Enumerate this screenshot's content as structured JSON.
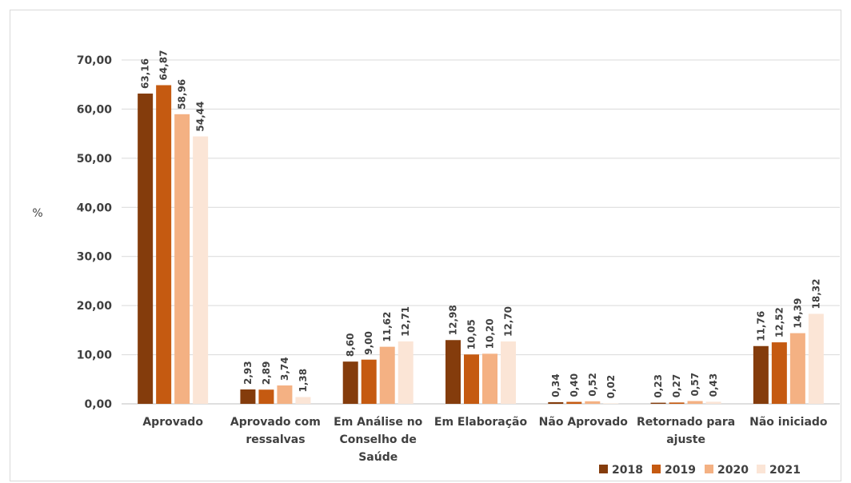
{
  "chart_data": {
    "type": "bar",
    "ylabel": "%",
    "ylim": [
      0,
      70
    ],
    "yticks": [
      "0,00",
      "10,00",
      "20,00",
      "30,00",
      "40,00",
      "50,00",
      "60,00",
      "70,00"
    ],
    "grid": true,
    "legend_position": "bottom-right",
    "categories": [
      [
        "Aprovado"
      ],
      [
        "Aprovado com",
        "ressalvas"
      ],
      [
        "Em Análise no",
        "Conselho de",
        "Saúde"
      ],
      [
        "Em Elaboração"
      ],
      [
        "Não Aprovado"
      ],
      [
        "Retornado para",
        "ajuste"
      ],
      [
        "Não iniciado"
      ]
    ],
    "series": [
      {
        "name": "2018",
        "color": "#843c0c",
        "values": [
          63.16,
          2.93,
          8.6,
          12.98,
          0.34,
          0.23,
          11.76
        ],
        "labels": [
          "63,16",
          "2,93",
          "8,60",
          "12,98",
          "0,34",
          "0,23",
          "11,76"
        ]
      },
      {
        "name": "2019",
        "color": "#c55a11",
        "values": [
          64.87,
          2.89,
          9.0,
          10.05,
          0.4,
          0.27,
          12.52
        ],
        "labels": [
          "64,87",
          "2,89",
          "9,00",
          "10,05",
          "0,40",
          "0,27",
          "12,52"
        ]
      },
      {
        "name": "2020",
        "color": "#f4b183",
        "values": [
          58.96,
          3.74,
          11.62,
          10.2,
          0.52,
          0.57,
          14.39
        ],
        "labels": [
          "58,96",
          "3,74",
          "11,62",
          "10,20",
          "0,52",
          "0,57",
          "14,39"
        ]
      },
      {
        "name": "2021",
        "color": "#fbe5d6",
        "values": [
          54.44,
          1.38,
          12.71,
          12.7,
          0.02,
          0.43,
          18.32
        ],
        "labels": [
          "54,44",
          "1,38",
          "12,71",
          "12,70",
          "0,02",
          "0,43",
          "18,32"
        ]
      }
    ]
  }
}
